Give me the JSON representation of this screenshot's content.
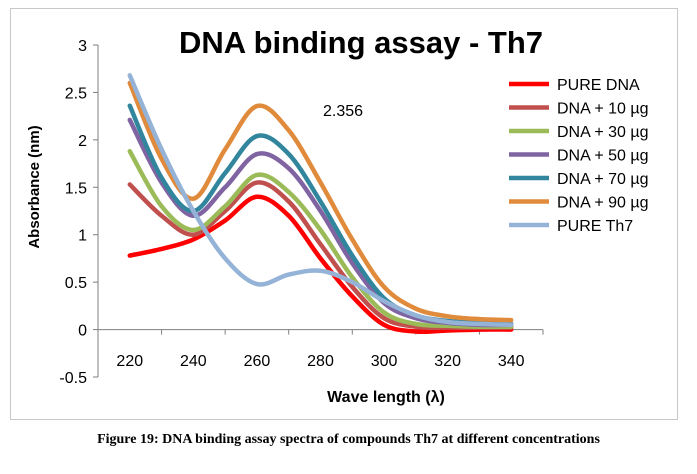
{
  "chart_data": {
    "type": "line",
    "title": "DNA binding assay - Th7",
    "xlabel": "Wave length (λ)",
    "ylabel": "Absorbance (nm)",
    "xlim": [
      210,
      350
    ],
    "ylim": [
      -0.5,
      3
    ],
    "x_ticks": [
      "220",
      "240",
      "260",
      "280",
      "300",
      "320",
      "340"
    ],
    "y_ticks": [
      "-0.5",
      "0",
      "0.5",
      "1",
      "1.5",
      "2",
      "2.5",
      "3"
    ],
    "grid": false,
    "legend_position": "right",
    "annotation": {
      "text": "2.356",
      "x": 260,
      "y": 2.356
    },
    "x": [
      220,
      230,
      240,
      250,
      260,
      270,
      280,
      290,
      300,
      310,
      320,
      330,
      340
    ],
    "series": [
      {
        "name": "PURE DNA",
        "color": "#ff0000",
        "values": [
          0.78,
          0.85,
          0.95,
          1.15,
          1.4,
          1.2,
          0.75,
          0.35,
          0.05,
          -0.02,
          -0.01,
          0.0,
          0.0
        ]
      },
      {
        "name": "DNA + 10 µg",
        "color": "#c0504d",
        "values": [
          1.53,
          1.2,
          1.0,
          1.25,
          1.55,
          1.35,
          0.9,
          0.45,
          0.12,
          0.03,
          0.02,
          0.02,
          0.02
        ]
      },
      {
        "name": "DNA + 30 µg",
        "color": "#9bbb59",
        "values": [
          1.88,
          1.3,
          1.05,
          1.3,
          1.63,
          1.45,
          1.05,
          0.55,
          0.18,
          0.06,
          0.04,
          0.03,
          0.03
        ]
      },
      {
        "name": "DNA + 50 µg",
        "color": "#8064a2",
        "values": [
          2.21,
          1.55,
          1.2,
          1.5,
          1.85,
          1.7,
          1.25,
          0.7,
          0.28,
          0.12,
          0.07,
          0.05,
          0.05
        ]
      },
      {
        "name": "DNA + 70 µg",
        "color": "#31859c",
        "values": [
          2.36,
          1.6,
          1.25,
          1.65,
          2.04,
          1.85,
          1.35,
          0.78,
          0.33,
          0.15,
          0.09,
          0.07,
          0.06
        ]
      },
      {
        "name": "DNA + 90 µg",
        "color": "#e08a3c",
        "values": [
          2.6,
          1.8,
          1.38,
          1.9,
          2.356,
          2.1,
          1.55,
          0.95,
          0.45,
          0.22,
          0.14,
          0.11,
          0.1
        ]
      },
      {
        "name": "PURE Th7",
        "color": "#95b3d7",
        "values": [
          2.68,
          1.9,
          1.25,
          0.75,
          0.48,
          0.58,
          0.62,
          0.5,
          0.3,
          0.15,
          0.08,
          0.06,
          0.05
        ]
      }
    ]
  },
  "caption": "Figure 19: DNA binding assay spectra of compounds Th7 at different concentrations"
}
